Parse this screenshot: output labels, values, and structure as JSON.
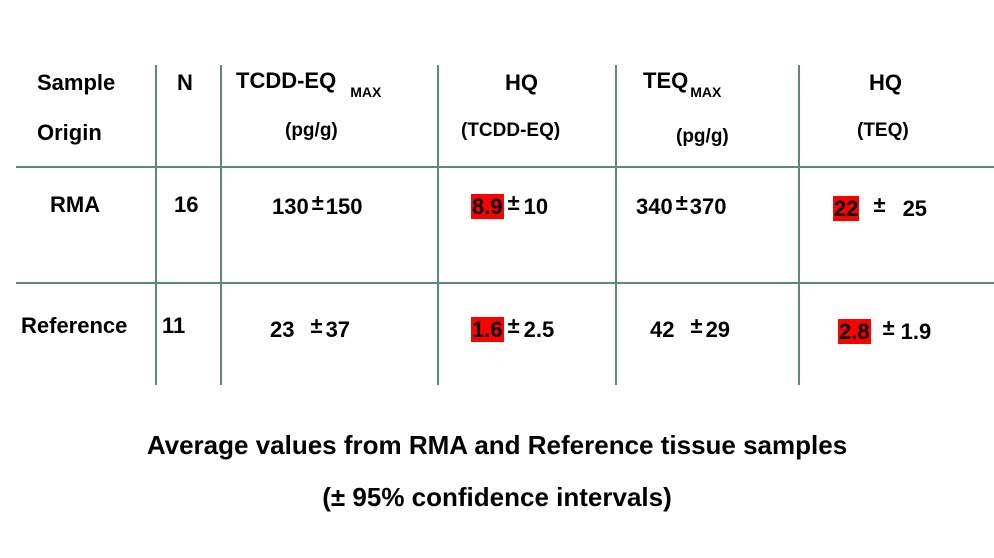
{
  "table": {
    "headers": {
      "sample_line1": "Sample",
      "sample_line2": "Origin",
      "n": "N",
      "tcdd_main": "TCDD-EQ",
      "tcdd_sub": "MAX",
      "tcdd_unit": "(pg/g)",
      "hq1_line1": "HQ",
      "hq1_line2": "(TCDD-EQ)",
      "teq_main": "TEQ",
      "teq_sub": "MAX",
      "teq_unit": "(pg/g)",
      "hq2_line1": "HQ",
      "hq2_line2": "(TEQ)"
    },
    "plusminus": "±",
    "rows": [
      {
        "origin": "RMA",
        "n": "16",
        "tcdd_mean": "130",
        "tcdd_ci": "150",
        "hq_tcdd_mean": "8.9",
        "hq_tcdd_ci": "10",
        "teq_mean": "340",
        "teq_ci": "370",
        "hq_teq_mean": "22",
        "hq_teq_ci": "25"
      },
      {
        "origin": "Reference",
        "n": "11",
        "tcdd_mean": "23",
        "tcdd_ci": "37",
        "hq_tcdd_mean": "1.6",
        "hq_tcdd_ci": "2.5",
        "teq_mean": "42",
        "teq_ci": "29",
        "hq_teq_mean": "2.8",
        "hq_teq_ci": "1.9"
      }
    ]
  },
  "caption": {
    "line1": "Average values from RMA and Reference tissue samples",
    "line2": "(± 95%  confidence intervals)"
  },
  "colors": {
    "grid_line": "#5c8a78",
    "highlight": "#ff0000"
  }
}
